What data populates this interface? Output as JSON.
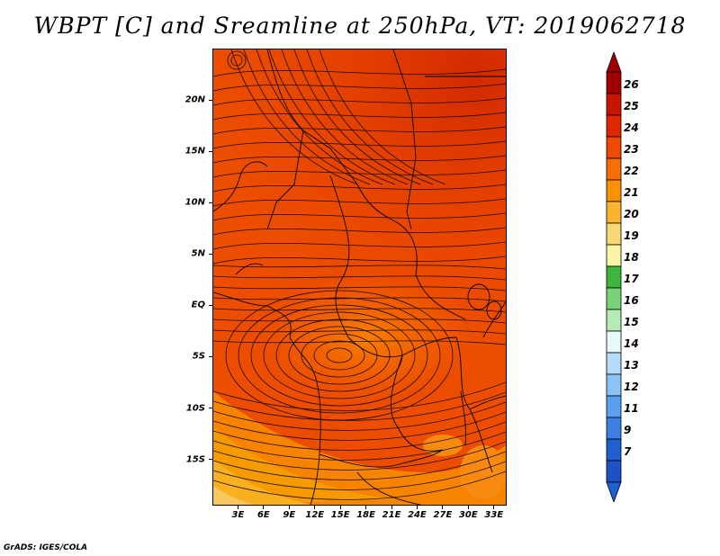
{
  "title": "WBPT [C] and Sreamline at 250hPa, VT: 2019062718",
  "credit": "GrADS: IGES/COLA",
  "map": {
    "lat_labels": [
      "20N",
      "15N",
      "10N",
      "5N",
      "EQ",
      "5S",
      "10S",
      "15S"
    ],
    "lon_labels": [
      "3E",
      "6E",
      "9E",
      "12E",
      "15E",
      "18E",
      "21E",
      "24E",
      "27E",
      "30E",
      "33E"
    ],
    "lat_range": [
      -19.5,
      25.0
    ],
    "lon_range": [
      0.0,
      34.5
    ],
    "lat_ticks": [
      20,
      15,
      10,
      5,
      0,
      -5,
      -10,
      -15
    ],
    "lon_ticks": [
      3,
      6,
      9,
      12,
      15,
      18,
      21,
      24,
      27,
      30,
      33
    ]
  },
  "colorbar": {
    "labels": [
      "26",
      "25",
      "24",
      "23",
      "22",
      "21",
      "20",
      "19",
      "18",
      "17",
      "16",
      "15",
      "14",
      "13",
      "12",
      "11",
      "9",
      "7"
    ],
    "colors": [
      "#a00000",
      "#c81400",
      "#e02800",
      "#f04a00",
      "#f86e00",
      "#fa9200",
      "#fab430",
      "#f8d870",
      "#fcf5a8",
      "#3cb63c",
      "#78d278",
      "#b4ecb4",
      "#e6fafa",
      "#b4dcfa",
      "#8cc3f5",
      "#5aa0f0",
      "#3c80e6",
      "#1e5fd2",
      "#1e50c8"
    ],
    "top_arrow_color": "#a00000",
    "bottom_arrow_color": "#1e5fd2"
  }
}
